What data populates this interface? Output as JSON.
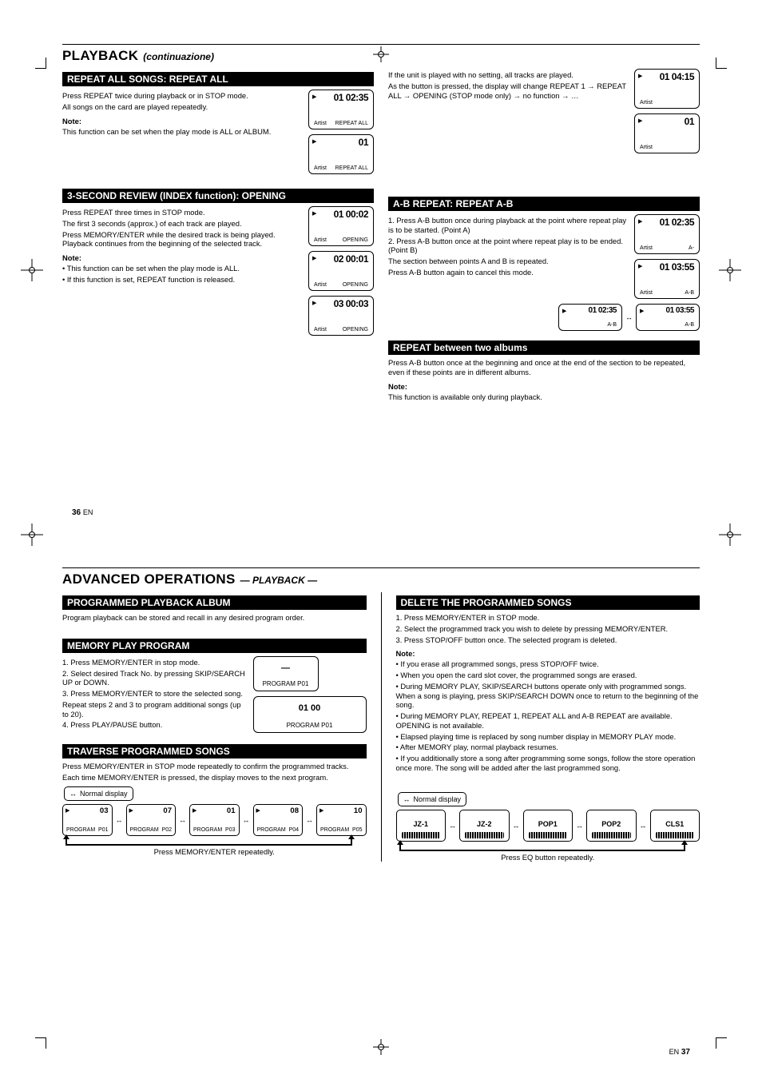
{
  "doc": {
    "chapter_title_en": "PLAYBACK",
    "chapter_title_it": "(continuazione)",
    "adv_chapter_title": "ADVANCED OPERATIONS",
    "page_left": "36",
    "page_left_label": "EN",
    "page_right": "37",
    "page_right_label": "EN",
    "adv_page_bottom": "— PLAYBACK —",
    "colors": {
      "black": "#000000",
      "white": "#ffffff"
    }
  },
  "p1": {
    "left": {
      "sec1_title": "REPEAT ALL SONGS:     REPEAT ALL",
      "sec1_p1": "Press REPEAT twice during playback or in STOP mode.",
      "sec1_li": "All songs on the card are played repeatedly.",
      "sec1_note_h": "Note:",
      "sec1_note": "This function can be set when the play mode is ALL or ALBUM.",
      "sec1_lcd1": {
        "l1": "01 02:35",
        "l2": "Artist",
        "l3": "REPEAT ALL"
      },
      "sec1_lcd2": {
        "l1": "01",
        "l2": "Artist",
        "l3": "REPEAT ALL"
      },
      "sec2_title": "3-SECOND REVIEW (INDEX function):  OPENING",
      "sec2_p1": "Press REPEAT three times in STOP mode.",
      "sec2_li1": "The first 3 seconds (approx.) of each track are played.",
      "sec2_li2": "Press MEMORY/ENTER while the desired track is being played. Playback continues from the beginning of the selected track.",
      "sec2_note_h": "Note:",
      "sec2_note_li1": "• This function can be set when the play mode is ALL.",
      "sec2_note_li2": "• If this function is set, REPEAT function is released.",
      "sec2_lcd1": {
        "l1": "01 00:02",
        "l2": "Artist",
        "l3": "OPENING"
      },
      "sec2_lcd2": {
        "l1": "02 00:01",
        "l2": "Artist",
        "l3": "OPENING"
      },
      "sec2_lcd3": {
        "l1": "03 00:03",
        "l2": "Artist",
        "l3": "OPENING"
      }
    },
    "right": {
      "no_header": true,
      "para1": "If the unit is played with no setting, all tracks are played.",
      "para2": "As the button is pressed, the display will change REPEAT 1 → REPEAT ALL → OPENING (STOP mode only) → no function → …",
      "lcd1": {
        "l1": "01 04:15",
        "l2": "Artist",
        "l3": ""
      },
      "lcd2": {
        "l1": "01",
        "l2": "Artist",
        "l3": ""
      },
      "sec2_title": "A-B REPEAT:          REPEAT A-B",
      "sec2_s1": "1. Press A-B button once during playback at the point where repeat play is to be started. (Point A)",
      "sec2_s2": "2. Press A-B button once at the point where repeat play is to be ended. (Point B)",
      "sec2_after": "The section between points A and B is repeated.",
      "sec2_cancel": "Press A-B button again to cancel this mode.",
      "sec2_lcd1": {
        "l1": "01 02:35",
        "l2": "Artist",
        "l3": "A-"
      },
      "sec2_lcd2": {
        "l1": "01 03:55",
        "l2": "Artist",
        "l3": "A-B"
      },
      "sec2_lcd3a": {
        "l1": "01 02:35",
        "l3": "A-B"
      },
      "sec2_lcd3b": {
        "l1": "01 03:55",
        "l3": "A-B"
      },
      "sec3_title": "REPEAT between two albums",
      "sec3_p": "Press A-B button once at the beginning and once at the end of the section to be repeated, even if these points are in different albums.",
      "sec3_note_h": "Note:",
      "sec3_note": "This function is available only during playback."
    }
  },
  "p2": {
    "left": {
      "sec1_title": "PROGRAMMED PLAYBACK         ALBUM",
      "sec1_p": "Program playback can be stored and recall in any desired program order.",
      "sec2_title": "MEMORY PLAY                 PROGRAM",
      "sec2_p1": "1. Press MEMORY/ENTER in stop mode.",
      "sec2_p2": "2. Select desired Track No. by pressing SKIP/SEARCH UP or DOWN.",
      "sec2_p3": "3. Press MEMORY/ENTER to store the selected song.",
      "sec2_p4": "Repeat steps 2 and 3 to program additional songs (up to 20).",
      "sec2_p5": "4. Press PLAY/PAUSE button.",
      "sec2_lcd_small": {
        "c": "—",
        "b": "PROGRAM   P01"
      },
      "sec2_lcd_big": {
        "c": "01    00",
        "b": "PROGRAM   P01"
      },
      "sec3_title": "TRAVERSE PROGRAMMED SONGS",
      "sec3_p1": "Press MEMORY/ENTER in STOP mode repeatedly to confirm the programmed tracks.",
      "sec3_p2": "Each time MEMORY/ENTER is pressed, the display moves to the next program.",
      "flow_top": "Normal display",
      "flow_boxes": [
        {
          "t": "03",
          "b": "PROGRAM",
          "br": "P01"
        },
        {
          "t": "07",
          "b": "PROGRAM",
          "br": "P02"
        },
        {
          "t": "01",
          "b": "PROGRAM",
          "br": "P03"
        },
        {
          "t": "08",
          "b": "PROGRAM",
          "br": "P04"
        },
        {
          "t": "10",
          "b": "PROGRAM",
          "br": "P05"
        }
      ],
      "flow_label": "Press MEMORY/ENTER repeatedly."
    },
    "right": {
      "sec1_title": "DELETE THE PROGRAMMED SONGS",
      "sec1_p1": "1. Press MEMORY/ENTER in STOP mode.",
      "sec1_p2": "2. Select the programmed track you wish to delete by pressing MEMORY/ENTER.",
      "sec1_p3": "3. Press STOP/OFF button once. The selected program is deleted.",
      "sec1_note_h": "Note:",
      "sec1_n1": "• If you erase all programmed songs, press STOP/OFF twice.",
      "sec1_n2": "• When you open the card slot cover, the programmed songs are erased.",
      "sec1_n3": "• During MEMORY PLAY, SKIP/SEARCH buttons operate only with programmed songs. When a song is playing, press SKIP/SEARCH DOWN once to return to the beginning of the song.",
      "sec1_n4": "• During MEMORY PLAY, REPEAT 1, REPEAT ALL and A-B REPEAT are available. OPENING is not available.",
      "sec1_n5": "• Elapsed playing time is replaced by song number display in MEMORY PLAY mode.",
      "sec1_n6": "• After MEMORY play, normal playback resumes.",
      "sec1_n7": "• If you additionally store a song after programming some songs, follow the store operation once more. The song will be added after the last programmed song.",
      "flow_top": "Normal display",
      "flow_boxes": [
        {
          "c": "JZ-1",
          "bars": true
        },
        {
          "c": "JZ-2",
          "bars": true
        },
        {
          "c": "POP1",
          "bars": true
        },
        {
          "c": "POP2",
          "bars": true
        },
        {
          "c": "CLS1",
          "bars": true
        }
      ],
      "flow_label": "Press EQ button repeatedly."
    }
  }
}
